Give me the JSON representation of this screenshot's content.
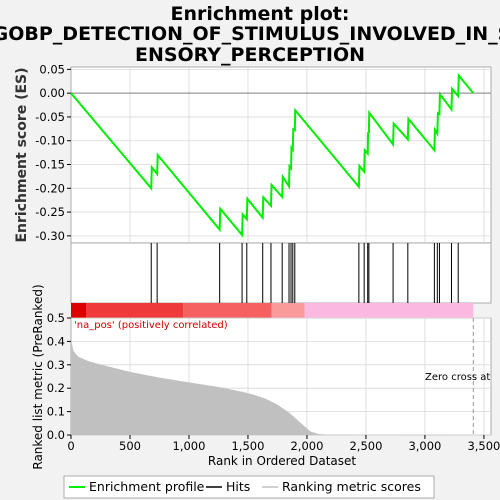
{
  "chart_data": {
    "type": "line",
    "title_lines": [
      "Enrichment plot:",
      "GOBP_DETECTION_OF_STIMULUS_INVOLVED_IN_S",
      "ENSORY_PERCEPTION"
    ],
    "top_panel": {
      "ylabel": "Enrichment score (ES)",
      "ylim": [
        -0.315,
        0.055
      ],
      "yticks": [
        0.05,
        0.0,
        -0.05,
        -0.1,
        -0.15,
        -0.2,
        -0.25,
        -0.3
      ],
      "ytick_labels": [
        "0.05",
        "0.00",
        "-0.05",
        "-0.10",
        "-0.15",
        "-0.20",
        "-0.25",
        "-0.30"
      ],
      "series_name": "Enrichment profile",
      "color": "#00ee00",
      "points": [
        [
          0,
          0.0
        ],
        [
          680,
          -0.2
        ],
        [
          685,
          -0.156
        ],
        [
          730,
          -0.17
        ],
        [
          735,
          -0.13
        ],
        [
          1260,
          -0.287
        ],
        [
          1265,
          -0.243
        ],
        [
          1450,
          -0.298
        ],
        [
          1455,
          -0.255
        ],
        [
          1490,
          -0.265
        ],
        [
          1495,
          -0.222
        ],
        [
          1625,
          -0.262
        ],
        [
          1630,
          -0.219
        ],
        [
          1695,
          -0.237
        ],
        [
          1700,
          -0.193
        ],
        [
          1790,
          -0.218
        ],
        [
          1795,
          -0.176
        ],
        [
          1848,
          -0.196
        ],
        [
          1852,
          -0.154
        ],
        [
          1865,
          -0.158
        ],
        [
          1869,
          -0.115
        ],
        [
          1880,
          -0.119
        ],
        [
          1884,
          -0.076
        ],
        [
          1897,
          -0.078
        ],
        [
          1901,
          -0.036
        ],
        [
          2440,
          -0.197
        ],
        [
          2445,
          -0.153
        ],
        [
          2485,
          -0.165
        ],
        [
          2490,
          -0.12
        ],
        [
          2515,
          -0.127
        ],
        [
          2518,
          -0.084
        ],
        [
          2525,
          -0.083
        ],
        [
          2528,
          -0.041
        ],
        [
          2730,
          -0.108
        ],
        [
          2735,
          -0.064
        ],
        [
          2855,
          -0.097
        ],
        [
          2860,
          -0.054
        ],
        [
          3080,
          -0.12
        ],
        [
          3085,
          -0.077
        ],
        [
          3105,
          -0.085
        ],
        [
          3110,
          -0.042
        ],
        [
          3123,
          -0.044
        ],
        [
          3127,
          -0.002
        ],
        [
          3225,
          -0.034
        ],
        [
          3230,
          0.009
        ],
        [
          3282,
          -0.006
        ],
        [
          3287,
          0.037
        ],
        [
          3410,
          0.0
        ]
      ]
    },
    "hits_panel": {
      "series_name": "Hits",
      "hits": [
        680,
        730,
        1260,
        1450,
        1490,
        1625,
        1695,
        1790,
        1848,
        1865,
        1880,
        1897,
        2440,
        2485,
        2515,
        2525,
        2730,
        2855,
        3080,
        3105,
        3123,
        3225,
        3282
      ]
    },
    "color_bar": {
      "segments": [
        {
          "from": 0,
          "to": 130,
          "color": "#dd0000"
        },
        {
          "from": 130,
          "to": 950,
          "color": "#ee3a3a"
        },
        {
          "from": 950,
          "to": 1700,
          "color": "#f56060"
        },
        {
          "from": 1700,
          "to": 1980,
          "color": "#fb9a9a"
        },
        {
          "from": 1980,
          "to": 3410,
          "color": "#fbb8e0"
        }
      ]
    },
    "bottom_panel": {
      "ylabel": "Ranked list metric (PreRanked)",
      "xlabel": "Rank in Ordered Dataset",
      "ylim": [
        0.0,
        0.5
      ],
      "yticks": [
        0.0,
        0.1,
        0.2,
        0.3,
        0.4,
        0.5
      ],
      "ytick_labels": [
        "0.0",
        "0.1",
        "0.2",
        "0.3",
        "0.4",
        "0.5"
      ],
      "series_name": "Ranking metric scores",
      "fill_color": "#c0c0c0",
      "points": [
        [
          0,
          0.41
        ],
        [
          20,
          0.36
        ],
        [
          60,
          0.335
        ],
        [
          150,
          0.315
        ],
        [
          300,
          0.295
        ],
        [
          500,
          0.27
        ],
        [
          750,
          0.245
        ],
        [
          1000,
          0.225
        ],
        [
          1250,
          0.205
        ],
        [
          1450,
          0.185
        ],
        [
          1550,
          0.172
        ],
        [
          1650,
          0.155
        ],
        [
          1750,
          0.13
        ],
        [
          1850,
          0.095
        ],
        [
          1950,
          0.05
        ],
        [
          2030,
          0.015
        ],
        [
          2100,
          0.004
        ],
        [
          2200,
          0.001
        ],
        [
          3410,
          0.0
        ]
      ],
      "annotation_top": "'na_pos' (positively correlated)",
      "annotation_zero": "Zero cross at",
      "zero_cross_rank": 3410
    },
    "xlim": [
      0,
      3560
    ],
    "xticks": [
      0,
      500,
      1000,
      1500,
      2000,
      2500,
      3000,
      3500
    ],
    "xtick_labels": [
      "0",
      "500",
      "1,000",
      "1,500",
      "2,000",
      "2,500",
      "3,000",
      "3,500"
    ],
    "legend": {
      "placement": "bottom",
      "items": [
        {
          "label": "Enrichment profile",
          "color": "#00ee00"
        },
        {
          "label": "Hits",
          "color": "#000000"
        },
        {
          "label": "Ranking metric scores",
          "color": "#c0c0c0"
        }
      ]
    }
  }
}
